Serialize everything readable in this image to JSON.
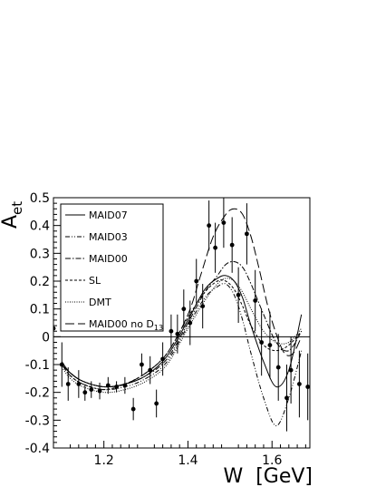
{
  "chart_data": {
    "type": "line",
    "title": "",
    "xlabel": "W  [GeV]",
    "ylabel_main": "A",
    "ylabel_sub": "et",
    "xlim": [
      1.08,
      1.69
    ],
    "ylim": [
      -0.4,
      0.5
    ],
    "xticks": [
      {
        "value": 1.2,
        "label": "1.2"
      },
      {
        "value": 1.4,
        "label": "1.4"
      },
      {
        "value": 1.6,
        "label": "1.6"
      }
    ],
    "yticks": [
      {
        "value": -0.4,
        "label": "-0.4"
      },
      {
        "value": -0.3,
        "label": "-0.3"
      },
      {
        "value": -0.2,
        "label": "-0.2"
      },
      {
        "value": -0.1,
        "label": "-0.1"
      },
      {
        "value": 0.0,
        "label": "0"
      },
      {
        "value": 0.1,
        "label": "0.1"
      },
      {
        "value": 0.2,
        "label": "0.2"
      },
      {
        "value": 0.3,
        "label": "0.3"
      },
      {
        "value": 0.4,
        "label": "0.4"
      },
      {
        "value": 0.5,
        "label": "0.5"
      }
    ],
    "legend_position": "top-left",
    "series": [
      {
        "name": "MAID07",
        "style": "solid",
        "x": [
          1.1,
          1.12,
          1.15,
          1.2,
          1.25,
          1.3,
          1.35,
          1.4,
          1.44,
          1.47,
          1.49,
          1.51,
          1.53,
          1.55,
          1.58,
          1.61,
          1.64,
          1.67
        ],
        "y": [
          -0.09,
          -0.13,
          -0.16,
          -0.18,
          -0.17,
          -0.14,
          -0.07,
          0.06,
          0.17,
          0.21,
          0.22,
          0.2,
          0.14,
          0.04,
          -0.09,
          -0.18,
          -0.12,
          0.08
        ]
      },
      {
        "name": "MAID03",
        "style": "dash-dot-dot",
        "x": [
          1.1,
          1.12,
          1.15,
          1.2,
          1.25,
          1.3,
          1.35,
          1.4,
          1.44,
          1.47,
          1.49,
          1.51,
          1.53,
          1.55,
          1.58,
          1.61,
          1.64,
          1.67
        ],
        "y": [
          -0.1,
          -0.14,
          -0.17,
          -0.19,
          -0.18,
          -0.15,
          -0.09,
          0.04,
          0.14,
          0.18,
          0.19,
          0.15,
          0.06,
          -0.06,
          -0.22,
          -0.32,
          -0.22,
          -0.05
        ]
      },
      {
        "name": "MAID00",
        "style": "dash-dot",
        "x": [
          1.1,
          1.12,
          1.15,
          1.2,
          1.25,
          1.3,
          1.35,
          1.4,
          1.44,
          1.47,
          1.49,
          1.51,
          1.53,
          1.55,
          1.58,
          1.61,
          1.64,
          1.67
        ],
        "y": [
          -0.1,
          -0.13,
          -0.16,
          -0.18,
          -0.17,
          -0.14,
          -0.08,
          0.05,
          0.16,
          0.22,
          0.26,
          0.27,
          0.25,
          0.19,
          0.08,
          -0.02,
          -0.05,
          0.02
        ]
      },
      {
        "name": "SL",
        "style": "dashed",
        "x": [
          1.1,
          1.12,
          1.15,
          1.2,
          1.25,
          1.3,
          1.35,
          1.4,
          1.44,
          1.47,
          1.49,
          1.51,
          1.53,
          1.55,
          1.58,
          1.61,
          1.64,
          1.67
        ],
        "y": [
          -0.1,
          -0.14,
          -0.17,
          -0.19,
          -0.17,
          -0.13,
          -0.06,
          0.07,
          0.16,
          0.2,
          0.2,
          0.17,
          0.11,
          0.04,
          -0.03,
          -0.05,
          -0.03,
          0.02
        ]
      },
      {
        "name": "DMT",
        "style": "dotted",
        "x": [
          1.1,
          1.12,
          1.15,
          1.2,
          1.25,
          1.3,
          1.35,
          1.4,
          1.44,
          1.47,
          1.49,
          1.51,
          1.53,
          1.55,
          1.58,
          1.61,
          1.64,
          1.67
        ],
        "y": [
          -0.11,
          -0.15,
          -0.18,
          -0.2,
          -0.19,
          -0.16,
          -0.1,
          0.03,
          0.13,
          0.19,
          0.21,
          0.2,
          0.16,
          0.1,
          0.02,
          -0.02,
          -0.02,
          0.03
        ]
      },
      {
        "name": "MAID00 no D",
        "subscript": "13",
        "style": "long-dash",
        "x": [
          1.1,
          1.12,
          1.15,
          1.2,
          1.25,
          1.3,
          1.35,
          1.4,
          1.43,
          1.46,
          1.49,
          1.51,
          1.53,
          1.55,
          1.57,
          1.59,
          1.61,
          1.63,
          1.65,
          1.67
        ],
        "y": [
          -0.1,
          -0.13,
          -0.16,
          -0.18,
          -0.17,
          -0.13,
          -0.06,
          0.08,
          0.22,
          0.36,
          0.44,
          0.46,
          0.44,
          0.36,
          0.24,
          0.11,
          0.01,
          -0.06,
          -0.06,
          0.0
        ]
      }
    ],
    "data_points": [
      {
        "x": 1.08,
        "y": 0.03,
        "err": 0.13
      },
      {
        "x": 1.1,
        "y": -0.1,
        "err": 0.08
      },
      {
        "x": 1.115,
        "y": -0.17,
        "err": 0.06
      },
      {
        "x": 1.14,
        "y": -0.17,
        "err": 0.05
      },
      {
        "x": 1.155,
        "y": -0.2,
        "err": 0.03
      },
      {
        "x": 1.17,
        "y": -0.19,
        "err": 0.03
      },
      {
        "x": 1.19,
        "y": -0.195,
        "err": 0.03
      },
      {
        "x": 1.21,
        "y": -0.175,
        "err": 0.03
      },
      {
        "x": 1.23,
        "y": -0.18,
        "err": 0.02
      },
      {
        "x": 1.25,
        "y": -0.175,
        "err": 0.03
      },
      {
        "x": 1.27,
        "y": -0.26,
        "err": 0.04
      },
      {
        "x": 1.29,
        "y": -0.1,
        "err": 0.04
      },
      {
        "x": 1.31,
        "y": -0.12,
        "err": 0.05
      },
      {
        "x": 1.325,
        "y": -0.24,
        "err": 0.05
      },
      {
        "x": 1.34,
        "y": -0.08,
        "err": 0.06
      },
      {
        "x": 1.36,
        "y": 0.02,
        "err": 0.06
      },
      {
        "x": 1.375,
        "y": 0.01,
        "err": 0.07
      },
      {
        "x": 1.39,
        "y": 0.1,
        "err": 0.07
      },
      {
        "x": 1.405,
        "y": 0.05,
        "err": 0.08
      },
      {
        "x": 1.42,
        "y": 0.2,
        "err": 0.08
      },
      {
        "x": 1.435,
        "y": 0.11,
        "err": 0.08
      },
      {
        "x": 1.45,
        "y": 0.4,
        "err": 0.09
      },
      {
        "x": 1.465,
        "y": 0.32,
        "err": 0.09
      },
      {
        "x": 1.485,
        "y": 0.41,
        "err": 0.09
      },
      {
        "x": 1.505,
        "y": 0.33,
        "err": 0.1
      },
      {
        "x": 1.52,
        "y": 0.15,
        "err": 0.1
      },
      {
        "x": 1.54,
        "y": 0.37,
        "err": 0.11
      },
      {
        "x": 1.56,
        "y": 0.13,
        "err": 0.11
      },
      {
        "x": 1.575,
        "y": -0.02,
        "err": 0.12
      },
      {
        "x": 1.595,
        "y": -0.03,
        "err": 0.12
      },
      {
        "x": 1.615,
        "y": -0.11,
        "err": 0.12
      },
      {
        "x": 1.635,
        "y": -0.22,
        "err": 0.12
      },
      {
        "x": 1.645,
        "y": -0.12,
        "err": 0.12
      },
      {
        "x": 1.665,
        "y": -0.17,
        "err": 0.12
      },
      {
        "x": 1.685,
        "y": -0.18,
        "err": 0.12
      }
    ]
  }
}
